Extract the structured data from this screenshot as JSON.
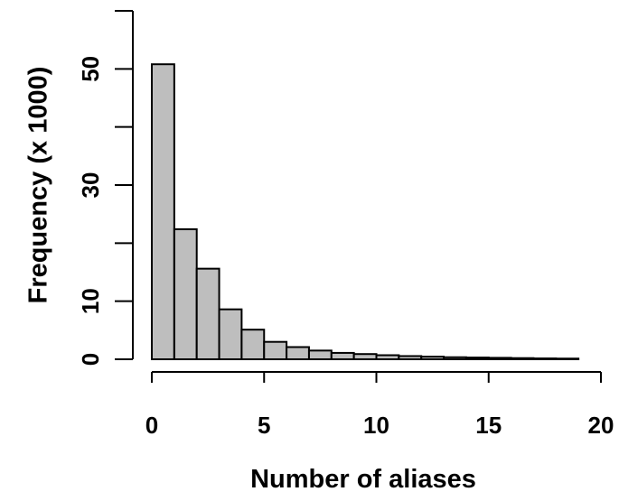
{
  "chart_data": {
    "type": "bar",
    "xlabel": "Number of aliases",
    "ylabel": "Frequency (x 1000)",
    "xlim": [
      0,
      20
    ],
    "ylim": [
      0,
      60
    ],
    "x_ticks": [
      0,
      5,
      10,
      15,
      20
    ],
    "y_ticks": [
      0,
      10,
      30,
      50
    ],
    "x_tick_labels": [
      "0",
      "5",
      "10",
      "15",
      "20"
    ],
    "y_tick_labels": [
      "0",
      "10",
      "30",
      "50"
    ],
    "bin_width": 1,
    "bins": [
      0,
      1,
      2,
      3,
      4,
      5,
      6,
      7,
      8,
      9,
      10,
      11,
      12,
      13,
      14,
      15,
      16,
      17,
      18
    ],
    "values": [
      50.8,
      22.4,
      15.6,
      8.6,
      5.1,
      3.0,
      2.1,
      1.5,
      1.1,
      0.9,
      0.7,
      0.55,
      0.45,
      0.35,
      0.3,
      0.25,
      0.2,
      0.15,
      0.12
    ],
    "bar_color": "#bebebe",
    "grid": false,
    "legend": "none"
  }
}
